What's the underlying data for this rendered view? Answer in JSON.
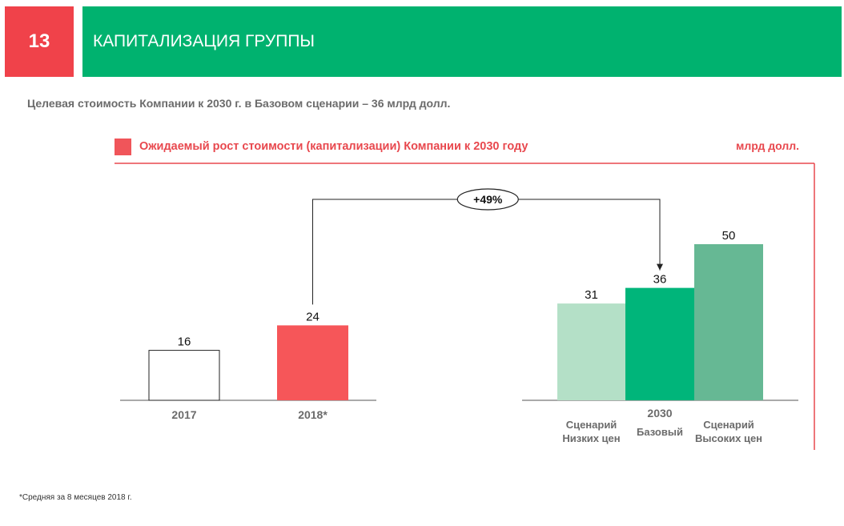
{
  "slide": {
    "number": "13",
    "title": "КАПИТАЛИЗАЦИЯ ГРУППЫ",
    "subtitle": "Целевая стоимость Компании к 2030 г. в Базовом сценарии – 36 млрд долл.",
    "footnote": "*Средняя за 8 месяцев 2018 г."
  },
  "colors": {
    "accent_red": "#f0424a",
    "header_green": "#00b26f"
  },
  "chart_data": {
    "type": "bar",
    "title": "Ожидаемый рост стоимости (капитализации) Компании к 2030 году",
    "unit": "млрд долл.",
    "groups": [
      {
        "label": "",
        "bars": [
          {
            "category": "2017",
            "value": 16,
            "label": "16",
            "color": "#ffffff"
          },
          {
            "category": "2018*",
            "value": 24,
            "label": "24",
            "color": "#f65659"
          }
        ]
      },
      {
        "label": "2030",
        "bars": [
          {
            "category": "Сценарий Низких цен",
            "category_lines": [
              "Сценарий",
              "Низких цен"
            ],
            "value": 31,
            "label": "31",
            "color": "#b4e0c7"
          },
          {
            "category": "Базовый",
            "category_lines": [
              "Базовый"
            ],
            "value": 36,
            "label": "36",
            "color": "#00b57a"
          },
          {
            "category": "Сценарий Высоких цен",
            "category_lines": [
              "Сценарий",
              "Высоких цен"
            ],
            "value": 50,
            "label": "50",
            "color": "#66b894"
          }
        ]
      }
    ],
    "annotation": {
      "text": "+49%",
      "from": "2018*",
      "to": "Базовый"
    }
  }
}
